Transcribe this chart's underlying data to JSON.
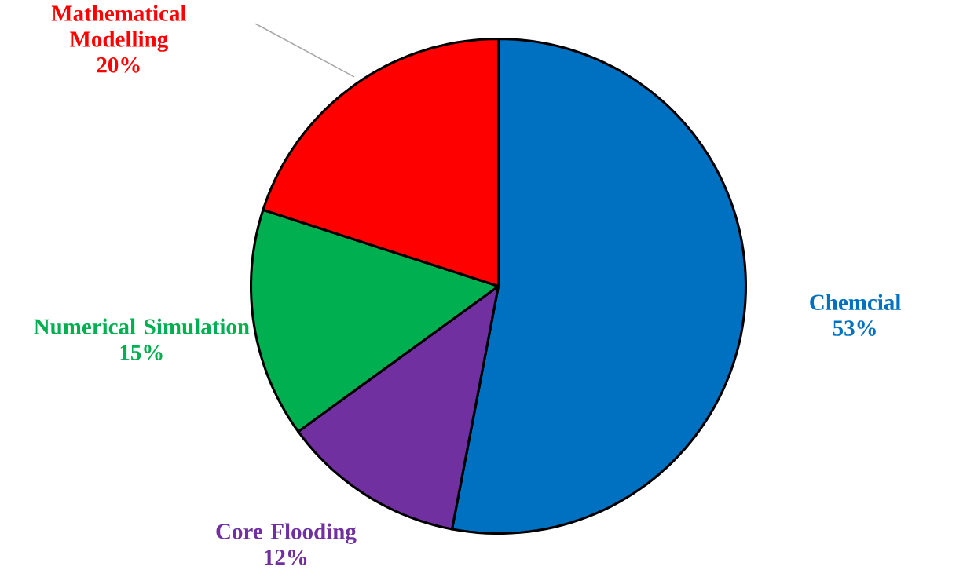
{
  "chart_data": {
    "type": "pie",
    "categories": [
      "Chemcial",
      "Core Flooding",
      "Numerical Simulation",
      "Mathematical Modelling"
    ],
    "values": [
      53,
      12,
      15,
      20
    ],
    "value_labels": [
      "53%",
      "12%",
      "15%",
      "20%"
    ],
    "colors": [
      "#0070c0",
      "#7030a0",
      "#00b050",
      "#ff0000"
    ]
  }
}
